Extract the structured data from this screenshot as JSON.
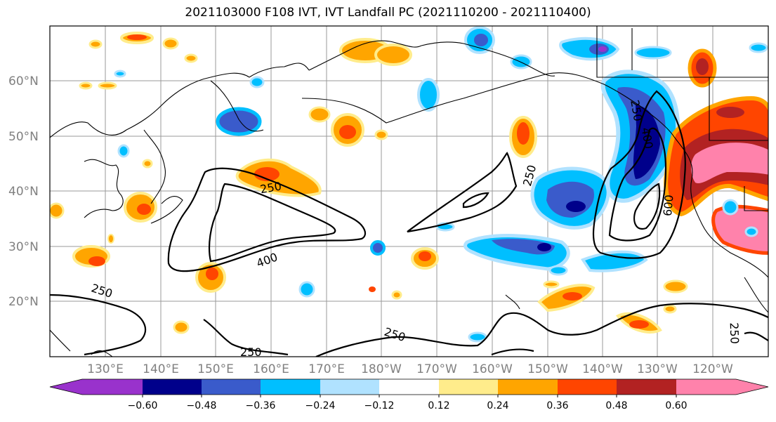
{
  "title": "2021103000 F108 IVT, IVT Landfall PC (2021110200 - 2021110400)",
  "lat_labels": [
    "60°N",
    "50°N",
    "40°N",
    "30°N",
    "20°N"
  ],
  "lon_labels": [
    "130°E",
    "140°E",
    "150°E",
    "160°E",
    "170°E",
    "180°W",
    "170°W",
    "160°W",
    "150°W",
    "140°W",
    "130°W",
    "120°W"
  ],
  "contour_labels": [
    {
      "id": "c250_a",
      "text": "250"
    },
    {
      "id": "c400_a",
      "text": "400"
    },
    {
      "id": "c250_b",
      "text": "250"
    },
    {
      "id": "c250_c",
      "text": "250"
    },
    {
      "id": "c250_d",
      "text": "250"
    },
    {
      "id": "c250_e",
      "text": "250"
    },
    {
      "id": "c400_b",
      "text": "400"
    },
    {
      "id": "c600_a",
      "text": "600"
    },
    {
      "id": "c250_f",
      "text": "250"
    }
  ],
  "colorbar": {
    "colors": [
      "#9932CC",
      "#00008B",
      "#3A5BCB",
      "#00BFFF",
      "#B0E2FF",
      "#FFFFFF",
      "#FFEC8B",
      "#FFA500",
      "#FF4500",
      "#B22222",
      "#FF82AB"
    ],
    "tick_labels": [
      "−0.60",
      "−0.48",
      "−0.36",
      "−0.24",
      "−0.12",
      "0.12",
      "0.24",
      "0.36",
      "0.48",
      "0.60"
    ]
  },
  "legend_colors": {
    "contour": "#000000",
    "grid": "#999999",
    "coast": "#000000"
  }
}
